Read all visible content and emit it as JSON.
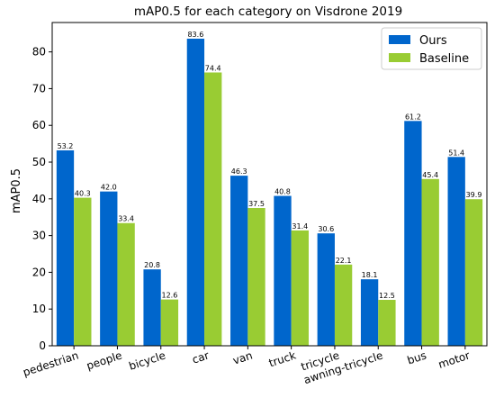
{
  "chart_data": {
    "type": "bar",
    "title": "mAP0.5 for each category on Visdrone 2019",
    "xlabel": "",
    "ylabel": "mAP0.5",
    "ylim": [
      0,
      88
    ],
    "yticks": [
      "0",
      "10",
      "20",
      "30",
      "40",
      "50",
      "60",
      "70",
      "80"
    ],
    "grid": false,
    "legend_position": "top-right",
    "categories": [
      "pedestrian",
      "people",
      "bicycle",
      "car",
      "van",
      "truck",
      "tricycle",
      "awning-tricycle",
      "bus",
      "motor"
    ],
    "series": [
      {
        "name": "Ours",
        "color": "#0066cc",
        "values": [
          53.2,
          42.0,
          20.8,
          83.6,
          46.3,
          40.8,
          30.6,
          18.1,
          61.2,
          51.4
        ],
        "labels": [
          "53.2",
          "42.0",
          "20.8",
          "83.6",
          "46.3",
          "40.8",
          "30.6",
          "18.1",
          "61.2",
          "51.4"
        ]
      },
      {
        "name": "Baseline",
        "color": "#99cc33",
        "values": [
          40.3,
          33.4,
          12.6,
          74.4,
          37.5,
          31.4,
          22.1,
          12.5,
          45.4,
          39.9
        ],
        "labels": [
          "40.3",
          "33.4",
          "12.6",
          "74.4",
          "37.5",
          "31.4",
          "22.1",
          "12.5",
          "45.4",
          "39.9"
        ]
      }
    ]
  }
}
